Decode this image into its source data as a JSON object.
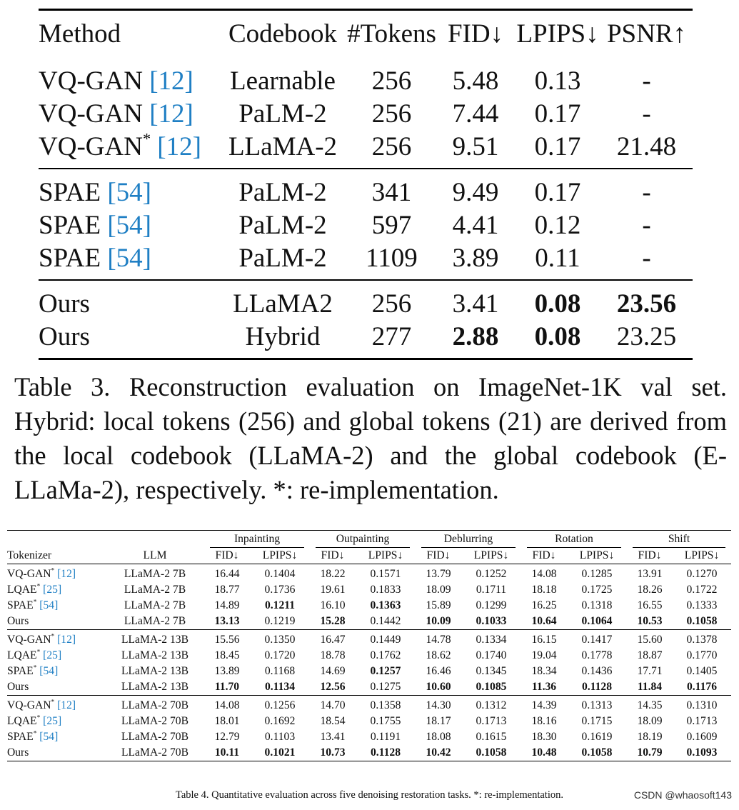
{
  "table3": {
    "headers": [
      "Method",
      "Codebook",
      "#Tokens",
      "FID↓",
      "LPIPS↓",
      "PSNR↑"
    ],
    "groups": [
      [
        {
          "method": "VQ-GAN ",
          "star": "",
          "cite": "[12]",
          "codebook": "Learnable",
          "tokens": "256",
          "fid": "5.48",
          "lpips": "0.13",
          "psnr": "-"
        },
        {
          "method": "VQ-GAN ",
          "star": "",
          "cite": "[12]",
          "codebook": "PaLM-2",
          "tokens": "256",
          "fid": "7.44",
          "lpips": "0.17",
          "psnr": "-"
        },
        {
          "method": "VQ-GAN",
          "star": "*",
          "cite": "[12]",
          "codebook": "LLaMA-2",
          "tokens": "256",
          "fid": "9.51",
          "lpips": "0.17",
          "psnr": "21.48"
        }
      ],
      [
        {
          "method": "SPAE ",
          "star": "",
          "cite": "[54]",
          "codebook": "PaLM-2",
          "tokens": "341",
          "fid": "9.49",
          "lpips": "0.17",
          "psnr": "-"
        },
        {
          "method": "SPAE ",
          "star": "",
          "cite": "[54]",
          "codebook": "PaLM-2",
          "tokens": "597",
          "fid": "4.41",
          "lpips": "0.12",
          "psnr": "-"
        },
        {
          "method": "SPAE ",
          "star": "",
          "cite": "[54]",
          "codebook": "PaLM-2",
          "tokens": "1109",
          "fid": "3.89",
          "lpips": "0.11",
          "psnr": "-"
        }
      ],
      [
        {
          "method": "Ours",
          "star": "",
          "cite": "",
          "codebook": "LLaMA2",
          "tokens": "256",
          "fid": "3.41",
          "lpips": "0.08",
          "psnr": "23.56",
          "bold": [
            "lpips",
            "psnr"
          ]
        },
        {
          "method": "Ours",
          "star": "",
          "cite": "",
          "codebook": "Hybrid",
          "tokens": "277",
          "fid": "2.88",
          "lpips": "0.08",
          "psnr": "23.25",
          "bold": [
            "fid",
            "lpips"
          ]
        }
      ]
    ],
    "caption": "Table 3. Reconstruction evaluation on ImageNet-1K val set. Hybrid: local tokens (256) and global tokens (21) are derived from the local codebook (LLaMA-2) and the global codebook (E-LLaMa-2), respectively. *: re-implementation."
  },
  "table4": {
    "col_tokenizer": "Tokenizer",
    "col_llm": "LLM",
    "tasks": [
      "Inpainting",
      "Outpainting",
      "Deblurring",
      "Rotation",
      "Shift"
    ],
    "metrics": [
      "FID↓",
      "LPIPS↓"
    ],
    "groups": [
      [
        {
          "tok": "VQ-GAN",
          "star": "*",
          "cite": "[12]",
          "llm": "LLaMA-2 7B",
          "vals": [
            "16.44",
            "0.1404",
            "18.22",
            "0.1571",
            "13.79",
            "0.1252",
            "14.08",
            "0.1285",
            "13.91",
            "0.1270"
          ],
          "bold": []
        },
        {
          "tok": "LQAE",
          "star": "*",
          "cite": "[25]",
          "llm": "LLaMA-2 7B",
          "vals": [
            "18.77",
            "0.1736",
            "19.61",
            "0.1833",
            "18.09",
            "0.1711",
            "18.18",
            "0.1725",
            "18.26",
            "0.1722"
          ],
          "bold": []
        },
        {
          "tok": "SPAE",
          "star": "*",
          "cite": "[54]",
          "llm": "LLaMA-2 7B",
          "vals": [
            "14.89",
            "0.1211",
            "16.10",
            "0.1363",
            "15.89",
            "0.1299",
            "16.25",
            "0.1318",
            "16.55",
            "0.1333"
          ],
          "bold": [
            1,
            3
          ]
        },
        {
          "tok": "Ours",
          "star": "",
          "cite": "",
          "llm": "LLaMA-2 7B",
          "vals": [
            "13.13",
            "0.1219",
            "15.28",
            "0.1442",
            "10.09",
            "0.1033",
            "10.64",
            "0.1064",
            "10.53",
            "0.1058"
          ],
          "bold": [
            0,
            2,
            4,
            5,
            6,
            7,
            8,
            9
          ]
        }
      ],
      [
        {
          "tok": "VQ-GAN",
          "star": "*",
          "cite": "[12]",
          "llm": "LLaMA-2 13B",
          "vals": [
            "15.56",
            "0.1350",
            "16.47",
            "0.1449",
            "14.78",
            "0.1334",
            "16.15",
            "0.1417",
            "15.60",
            "0.1378"
          ],
          "bold": []
        },
        {
          "tok": "LQAE",
          "star": "*",
          "cite": "[25]",
          "llm": "LLaMA-2 13B",
          "vals": [
            "18.45",
            "0.1720",
            "18.78",
            "0.1762",
            "18.62",
            "0.1740",
            "19.04",
            "0.1778",
            "18.87",
            "0.1770"
          ],
          "bold": []
        },
        {
          "tok": "SPAE",
          "star": "*",
          "cite": "[54]",
          "llm": "LLaMA-2 13B",
          "vals": [
            "13.89",
            "0.1168",
            "14.69",
            "0.1257",
            "16.46",
            "0.1345",
            "18.34",
            "0.1436",
            "17.71",
            "0.1405"
          ],
          "bold": [
            3
          ]
        },
        {
          "tok": "Ours",
          "star": "",
          "cite": "",
          "llm": "LLaMA-2 13B",
          "vals": [
            "11.70",
            "0.1134",
            "12.56",
            "0.1275",
            "10.60",
            "0.1085",
            "11.36",
            "0.1128",
            "11.84",
            "0.1176"
          ],
          "bold": [
            0,
            1,
            2,
            4,
            5,
            6,
            7,
            8,
            9
          ]
        }
      ],
      [
        {
          "tok": "VQ-GAN",
          "star": "*",
          "cite": "[12]",
          "llm": "LLaMA-2 70B",
          "vals": [
            "14.08",
            "0.1256",
            "14.70",
            "0.1358",
            "14.30",
            "0.1312",
            "14.39",
            "0.1313",
            "14.35",
            "0.1310"
          ],
          "bold": []
        },
        {
          "tok": "LQAE",
          "star": "*",
          "cite": "[25]",
          "llm": "LLaMA-2 70B",
          "vals": [
            "18.01",
            "0.1692",
            "18.54",
            "0.1755",
            "18.17",
            "0.1713",
            "18.16",
            "0.1715",
            "18.09",
            "0.1713"
          ],
          "bold": []
        },
        {
          "tok": "SPAE",
          "star": "*",
          "cite": "[54]",
          "llm": "LLaMA-2 70B",
          "vals": [
            "12.79",
            "0.1103",
            "13.41",
            "0.1191",
            "18.08",
            "0.1615",
            "18.30",
            "0.1619",
            "18.19",
            "0.1609"
          ],
          "bold": []
        },
        {
          "tok": "Ours",
          "star": "",
          "cite": "",
          "llm": "LLaMA-2 70B",
          "vals": [
            "10.11",
            "0.1021",
            "10.73",
            "0.1128",
            "10.42",
            "0.1058",
            "10.48",
            "0.1058",
            "10.79",
            "0.1093"
          ],
          "bold": [
            0,
            1,
            2,
            3,
            4,
            5,
            6,
            7,
            8,
            9
          ]
        }
      ]
    ],
    "caption": "Table 4. Quantitative evaluation across five denoising restoration tasks. *: re-implementation."
  },
  "watermark": "CSDN @whaosoft143",
  "colors": {
    "citation": "#1f7fc4"
  }
}
